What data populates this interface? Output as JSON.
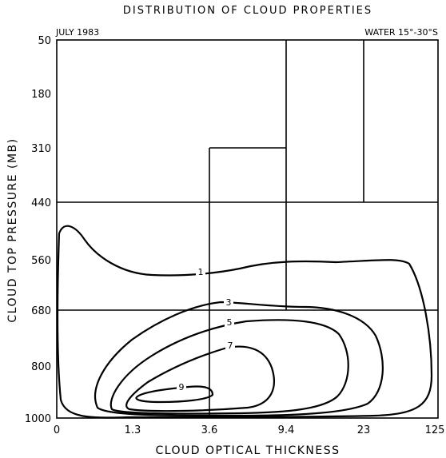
{
  "chart_data": {
    "type": "contour",
    "title": "DISTRIBUTION OF CLOUD PROPERTIES",
    "annotation_left": "JULY 1983",
    "annotation_right": "WATER 15°-30°S",
    "xlabel": "CLOUD OPTICAL THICKNESS",
    "ylabel": "CLOUD TOP PRESSURE (MB)",
    "x_ticks": [
      "0",
      "1.3",
      "3.6",
      "9.4",
      "23",
      "125"
    ],
    "y_ticks": [
      "50",
      "180",
      "310",
      "440",
      "560",
      "680",
      "800",
      "1000"
    ],
    "y_reversed": true,
    "contour_levels": [
      "1",
      "3",
      "5",
      "7",
      "9"
    ]
  }
}
